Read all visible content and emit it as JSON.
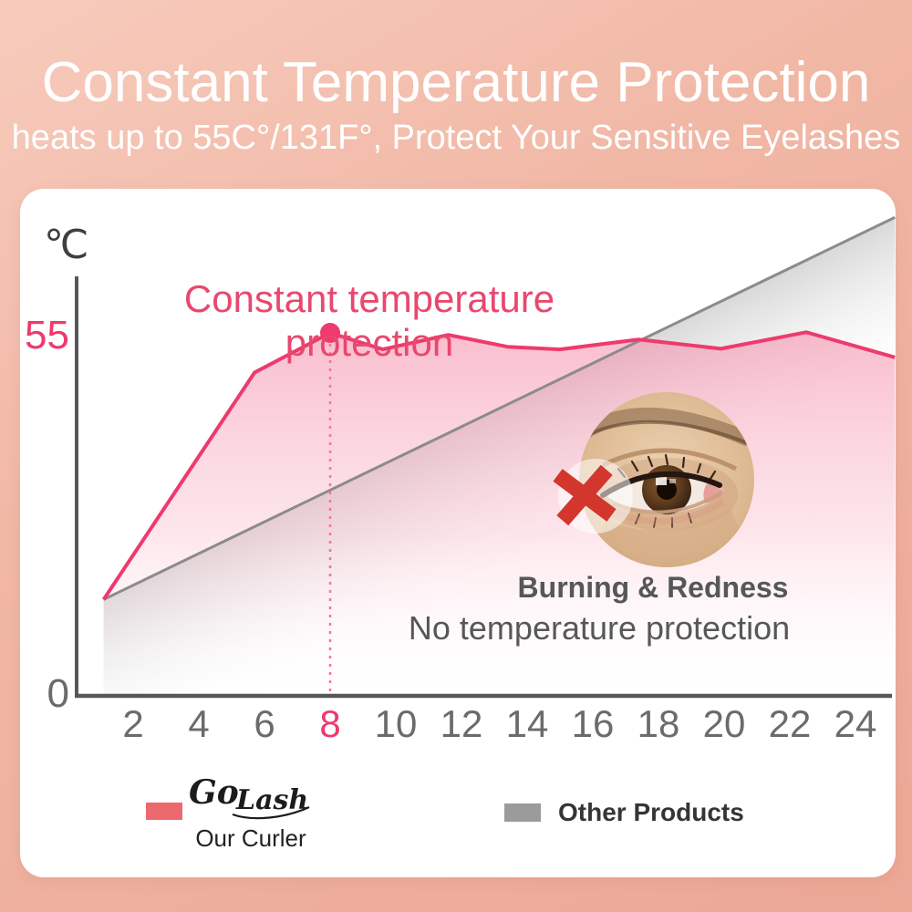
{
  "header": {
    "title": "Constant Temperature Protection",
    "subtitle": "heats up to 55C°/131F°, Protect Your Sensitive Eyelashes"
  },
  "chart": {
    "unit_label": "℃",
    "y_max_label": "55",
    "y_min_label": "0",
    "annotation": "Constant temperature protection",
    "burning_caption": "Burning & Redness",
    "no_protection_caption": "No temperature protection"
  },
  "chart_data": {
    "type": "area",
    "title": "Constant Temperature Protection",
    "xlabel": "",
    "ylabel": "°C",
    "ylim": [
      0,
      75
    ],
    "x_ticks": [
      2,
      4,
      6,
      8,
      10,
      12,
      14,
      16,
      18,
      20,
      22,
      24
    ],
    "highlighted_tick": 8,
    "y_tick_labels": [
      0,
      55
    ],
    "grid": false,
    "legend_position": "bottom",
    "series": [
      {
        "name": "Our Curler (Go Lash)",
        "color": "#ee3a6c",
        "x": [
          1.1,
          5.7,
          8.0,
          9.6,
          11.6,
          13.4,
          15.0,
          17.4,
          19.9,
          22.5,
          25.2
        ],
        "values": [
          14.6,
          49.0,
          55.0,
          52.5,
          54.7,
          52.9,
          52.5,
          54.0,
          52.6,
          55.1,
          51.3
        ]
      },
      {
        "name": "Other Products",
        "color": "#8b8b8b",
        "x": [
          1.1,
          25.2
        ],
        "values": [
          14.6,
          72.5
        ]
      }
    ],
    "marker": {
      "x": 8,
      "value": 55,
      "note": "constant temperature peak, dashed drop line to axis"
    },
    "annotations": [
      "Constant temperature protection",
      "Burning & Redness",
      "No temperature protection"
    ]
  },
  "legend": {
    "our": {
      "brand_go": "Go",
      "brand_lash": "Lash",
      "label": "Our Curler",
      "color": "#ec696e"
    },
    "other": {
      "label": "Other Products",
      "color": "#9b9b9b"
    }
  },
  "colors": {
    "background_top": "#f7cbbc",
    "background_bottom": "#eca795",
    "card": "#ffffff",
    "pink_line": "#ee3a6c",
    "gray_line": "#8b8b8b",
    "axis": "#56575b",
    "tick_text": "#6a6b6d",
    "caption_text": "#565759",
    "cross_mark": "#d2362c"
  }
}
